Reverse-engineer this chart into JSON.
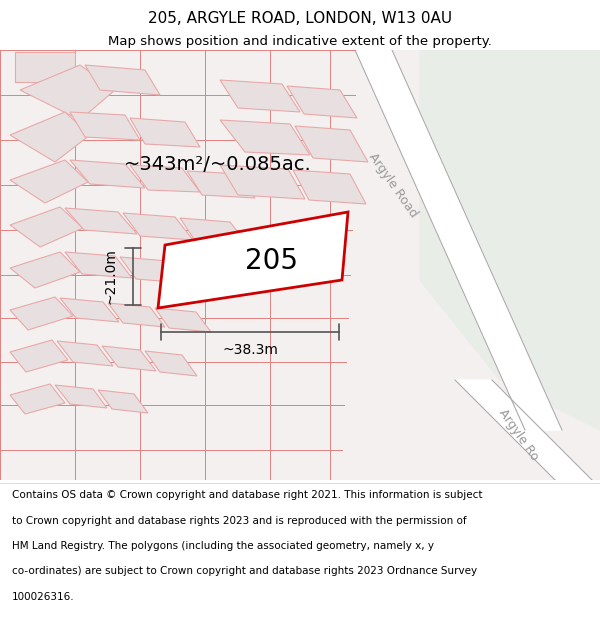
{
  "title_line1": "205, ARGYLE ROAD, LONDON, W13 0AU",
  "title_line2": "Map shows position and indicative extent of the property.",
  "footer_lines": [
    "Contains OS data © Crown copyright and database right 2021. This information is subject",
    "to Crown copyright and database rights 2023 and is reproduced with the permission of",
    "HM Land Registry. The polygons (including the associated geometry, namely x, y",
    "co-ordinates) are subject to Crown copyright and database rights 2023 Ordnance Survey",
    "100026316."
  ],
  "area_label": "~343m²/~0.085ac.",
  "label_205": "205",
  "width_label": "~38.3m",
  "height_label": "~21.0m",
  "road_label_top": "Argyle Road",
  "road_label_bottom": "Argyle Ro",
  "bg_map_color": "#f5f0f0",
  "green_area_color": "#e8ede8",
  "building_fill": "#e8e0e0",
  "building_stroke": "#e8a8a8",
  "plot_outline_color": "#cc0000",
  "measurement_color": "#555555",
  "street_color": "#e08080",
  "road_edge_color": "#aaaaaa",
  "title_fontsize": 11,
  "subtitle_fontsize": 9.5,
  "footer_fontsize": 7.5,
  "area_fontsize": 14,
  "label_205_fontsize": 20,
  "measurement_fontsize": 10,
  "road_fontsize": 9
}
